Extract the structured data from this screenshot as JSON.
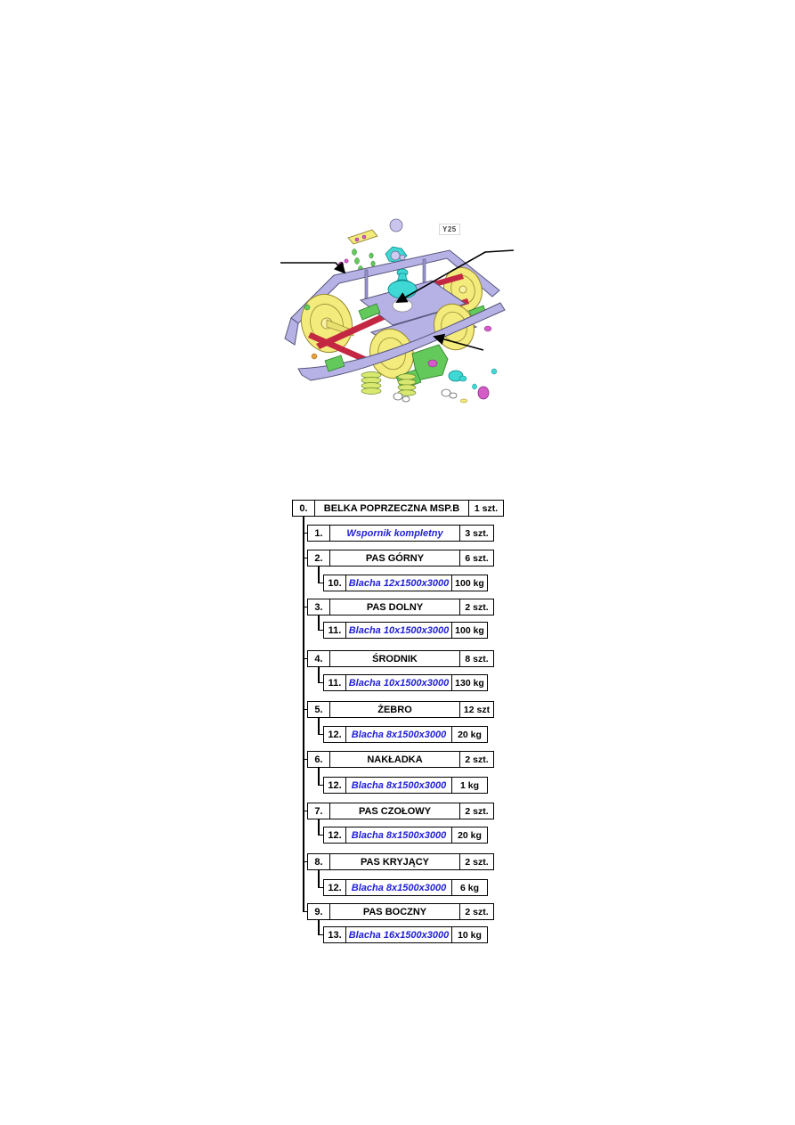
{
  "figure": {
    "label": "Y25",
    "description": "exploded isometric CAD view of Y25 railway bogie with three callout arrows"
  },
  "tree": {
    "root": {
      "num": "0.",
      "label": "BELKA POPRZECZNA MSP.B",
      "qty": "1 szt."
    },
    "items": [
      {
        "num": "1.",
        "label": "Wspornik kompletny",
        "qty": "3 szt.",
        "style": "blue-italic"
      },
      {
        "num": "2.",
        "label": "PAS GÓRNY",
        "qty": "6 szt.",
        "style": "black",
        "child": {
          "num": "10.",
          "label": "Blacha 12x1500x3000",
          "qty": "100 kg",
          "style": "blue-italic"
        }
      },
      {
        "num": "3.",
        "label": "PAS DOLNY",
        "qty": "2 szt.",
        "style": "black",
        "child": {
          "num": "11.",
          "label": "Blacha 10x1500x3000",
          "qty": "100 kg",
          "style": "blue-italic"
        }
      },
      {
        "num": "4.",
        "label": "ŚRODNIK",
        "qty": "8 szt.",
        "style": "black",
        "child": {
          "num": "11.",
          "label": "Blacha 10x1500x3000",
          "qty": "130 kg",
          "style": "blue-italic"
        }
      },
      {
        "num": "5.",
        "label": "ŻEBRO",
        "qty": "12 szt",
        "style": "black",
        "child": {
          "num": "12.",
          "label": "Blacha 8x1500x3000",
          "qty": "20 kg",
          "style": "blue-italic"
        }
      },
      {
        "num": "6.",
        "label": "NAKŁADKA",
        "qty": "2 szt.",
        "style": "black",
        "child": {
          "num": "12.",
          "label": "Blacha 8x1500x3000",
          "qty": "1 kg",
          "style": "blue-italic"
        }
      },
      {
        "num": "7.",
        "label": "PAS CZOŁOWY",
        "qty": "2 szt.",
        "style": "black",
        "child": {
          "num": "12.",
          "label": "Blacha 8x1500x3000",
          "qty": "20 kg",
          "style": "blue-italic"
        }
      },
      {
        "num": "8.",
        "label": "PAS KRYJĄCY",
        "qty": "2 szt.",
        "style": "black",
        "child": {
          "num": "12.",
          "label": "Blacha 8x1500x3000",
          "qty": "6 kg",
          "style": "blue-italic"
        }
      },
      {
        "num": "9.",
        "label": "PAS BOCZNY",
        "qty": "2 szt.",
        "style": "black",
        "child": {
          "num": "13.",
          "label": "Blacha 16x1500x3000",
          "qty": "10 kg",
          "style": "blue-italic"
        }
      }
    ]
  },
  "colors": {
    "line": "#000000",
    "blue_text": "#2121d6",
    "frame_lavender": "#b7b2e6",
    "wheel_yellow": "#f3eb7c",
    "part_cyan": "#3fd8d4",
    "part_red": "#c32742",
    "part_green": "#63c95a",
    "part_magenta": "#d45cc8"
  }
}
